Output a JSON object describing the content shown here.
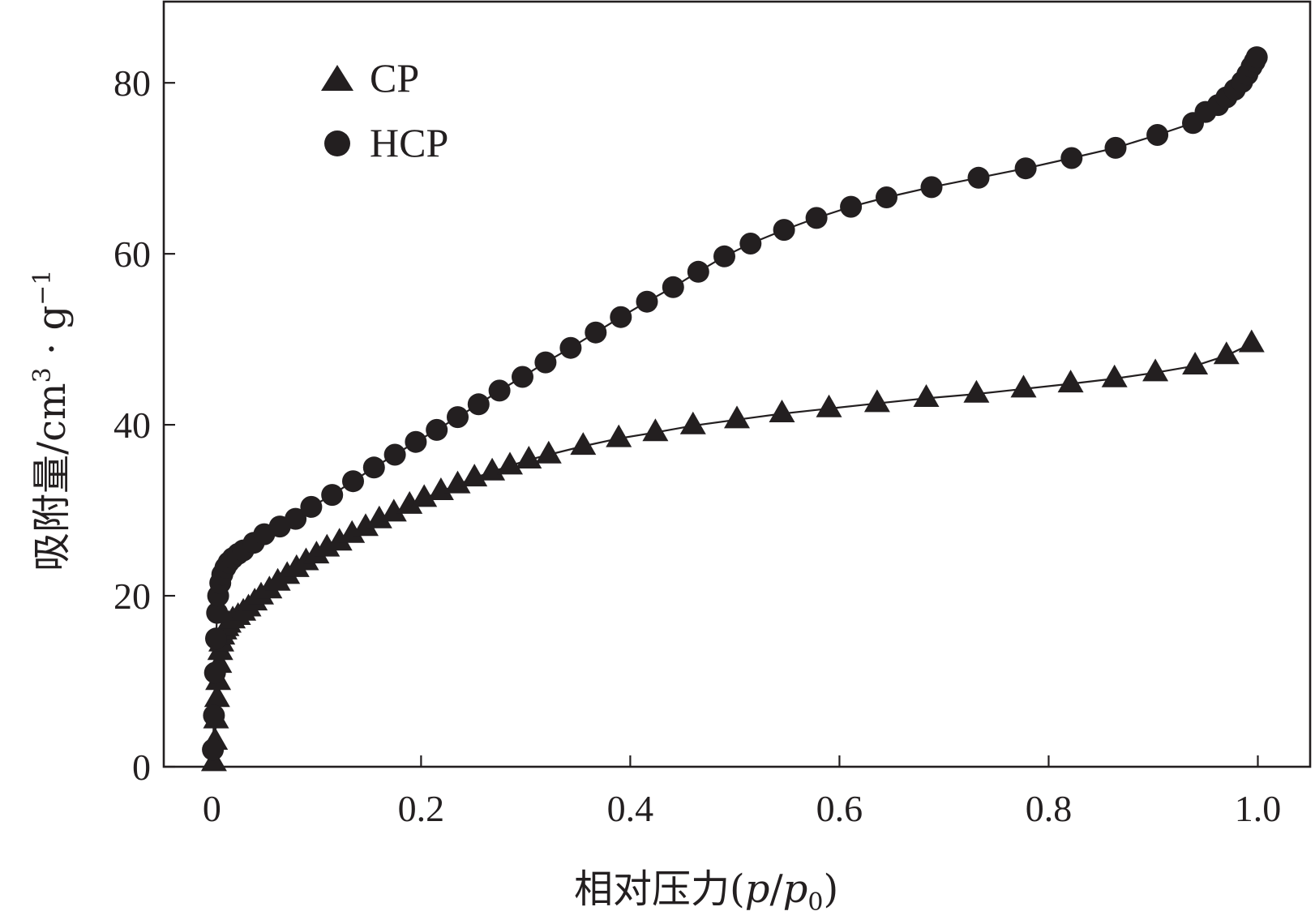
{
  "chart_data": {
    "type": "scatter",
    "xlabel": {
      "main": "相对压力(",
      "var1": "p",
      "slash": "/",
      "var2": "p",
      "sub": "0",
      "close": ")"
    },
    "ylabel": {
      "main": "吸附量/cm",
      "sup1": "3",
      "dot": " · g",
      "sup2": "−1"
    },
    "xlim": [
      -0.046,
      1.05
    ],
    "ylim": [
      0,
      89.5
    ],
    "x_ticks": [
      0,
      0.2,
      0.4,
      0.6,
      0.8,
      1.0
    ],
    "x_tick_labels": [
      "0",
      "0.2",
      "0.4",
      "0.6",
      "0.8",
      "1.0"
    ],
    "y_ticks": [
      0,
      20,
      40,
      60,
      80
    ],
    "y_tick_labels": [
      "0",
      "20",
      "40",
      "60",
      "80"
    ],
    "grid": false,
    "legend_position": "top-left",
    "colors": {
      "ink": "#231f20",
      "background": "#ffffff"
    },
    "series": [
      {
        "name": "CP",
        "marker": "triangle",
        "x": [
          0.002,
          0.003,
          0.004,
          0.005,
          0.006,
          0.007,
          0.008,
          0.009,
          0.01,
          0.012,
          0.014,
          0.016,
          0.02,
          0.025,
          0.03,
          0.035,
          0.041,
          0.047,
          0.055,
          0.063,
          0.072,
          0.081,
          0.09,
          0.1,
          0.11,
          0.122,
          0.134,
          0.147,
          0.16,
          0.174,
          0.189,
          0.203,
          0.219,
          0.235,
          0.251,
          0.268,
          0.285,
          0.303,
          0.322,
          0.355,
          0.389,
          0.424,
          0.46,
          0.502,
          0.545,
          0.59,
          0.636,
          0.683,
          0.731,
          0.776,
          0.821,
          0.863,
          0.902,
          0.94,
          0.97,
          0.994
        ],
        "y": [
          0.5,
          3,
          5.5,
          8,
          10,
          12,
          13.5,
          14.5,
          15.3,
          15.9,
          16.3,
          16.7,
          17.2,
          17.6,
          18.1,
          18.6,
          19.3,
          20.0,
          20.7,
          21.6,
          22.4,
          23.2,
          24.0,
          24.8,
          25.6,
          26.3,
          27.2,
          28.0,
          28.9,
          29.7,
          30.6,
          31.4,
          32.2,
          33.0,
          33.8,
          34.5,
          35.2,
          35.9,
          36.5,
          37.5,
          38.4,
          39.1,
          39.9,
          40.6,
          41.3,
          41.9,
          42.5,
          43.1,
          43.6,
          44.2,
          44.8,
          45.4,
          46.1,
          46.9,
          48.1,
          49.5
        ]
      },
      {
        "name": "HCP",
        "marker": "circle",
        "x": [
          0.001,
          0.002,
          0.003,
          0.004,
          0.005,
          0.006,
          0.008,
          0.01,
          0.013,
          0.016,
          0.02,
          0.025,
          0.03,
          0.04,
          0.05,
          0.065,
          0.08,
          0.095,
          0.115,
          0.135,
          0.155,
          0.175,
          0.195,
          0.215,
          0.235,
          0.255,
          0.275,
          0.297,
          0.319,
          0.343,
          0.367,
          0.391,
          0.416,
          0.441,
          0.465,
          0.49,
          0.515,
          0.547,
          0.578,
          0.611,
          0.645,
          0.688,
          0.733,
          0.778,
          0.822,
          0.864,
          0.904,
          0.938,
          0.95,
          0.962,
          0.97,
          0.978,
          0.985,
          0.99,
          0.994,
          0.997,
          0.999
        ],
        "y": [
          2,
          6,
          11,
          15,
          18,
          20,
          21.5,
          22.5,
          23.3,
          23.9,
          24.4,
          24.9,
          25.3,
          26.2,
          27.2,
          28.1,
          29.0,
          30.4,
          31.8,
          33.4,
          35.0,
          36.5,
          38.0,
          39.4,
          40.9,
          42.4,
          44.0,
          45.6,
          47.3,
          49.0,
          50.8,
          52.6,
          54.4,
          56.1,
          57.9,
          59.7,
          61.2,
          62.8,
          64.2,
          65.5,
          66.6,
          67.8,
          68.9,
          70.0,
          71.2,
          72.4,
          73.9,
          75.3,
          76.6,
          77.4,
          78.3,
          79.2,
          80.1,
          81.0,
          81.9,
          82.5,
          83.0
        ]
      }
    ]
  }
}
